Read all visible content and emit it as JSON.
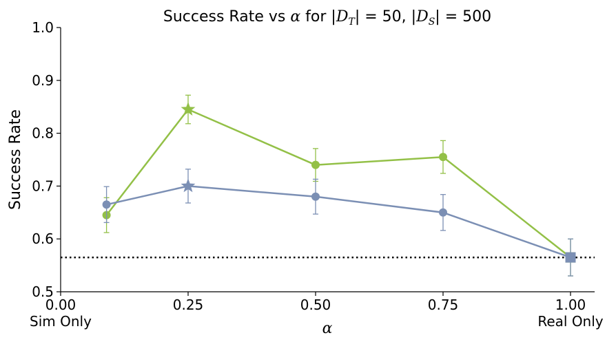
{
  "chart_data": {
    "type": "line",
    "title": {
      "prefix": "Success Rate vs ",
      "alpha": "α",
      "middle": " for |",
      "dt": "D",
      "dt_sub": "T",
      "eq1": "| = 50, |",
      "ds": "D",
      "ds_sub": "S",
      "eq2": "| = 500"
    },
    "xlabel": "α",
    "ylabel": "Success Rate",
    "xlim": [
      0.0,
      1.05
    ],
    "ylim": [
      0.5,
      1.0
    ],
    "xticks": [
      0.0,
      0.25,
      0.5,
      0.75,
      1.0
    ],
    "xtick_labels": [
      "0.00",
      "0.25",
      "0.50",
      "0.75",
      "1.00"
    ],
    "yticks": [
      0.5,
      0.6,
      0.7,
      0.8,
      0.9,
      1.0
    ],
    "ytick_labels": [
      "0.5",
      "0.6",
      "0.7",
      "0.8",
      "0.9",
      "1.0"
    ],
    "x_extra_labels": {
      "left": "Sim Only",
      "right": "Real Only"
    },
    "reference_line": {
      "y": 0.565,
      "style": "dotted",
      "color": "#000000"
    },
    "series": [
      {
        "name": "green",
        "color": "#93c047",
        "x": [
          0.09,
          0.25,
          0.5,
          0.75,
          1.0
        ],
        "y": [
          0.645,
          0.845,
          0.74,
          0.755,
          0.565
        ],
        "err": [
          0.033,
          0.027,
          0.031,
          0.031,
          0.035
        ],
        "markers": [
          "circle",
          "star",
          "circle",
          "circle",
          "square"
        ]
      },
      {
        "name": "blue",
        "color": "#7b8fb4",
        "x": [
          0.09,
          0.25,
          0.5,
          0.75,
          1.0
        ],
        "y": [
          0.665,
          0.7,
          0.68,
          0.65,
          0.565
        ],
        "err": [
          0.034,
          0.032,
          0.033,
          0.034,
          0.035
        ],
        "markers": [
          "circle",
          "star",
          "circle",
          "circle",
          "square"
        ]
      }
    ]
  }
}
